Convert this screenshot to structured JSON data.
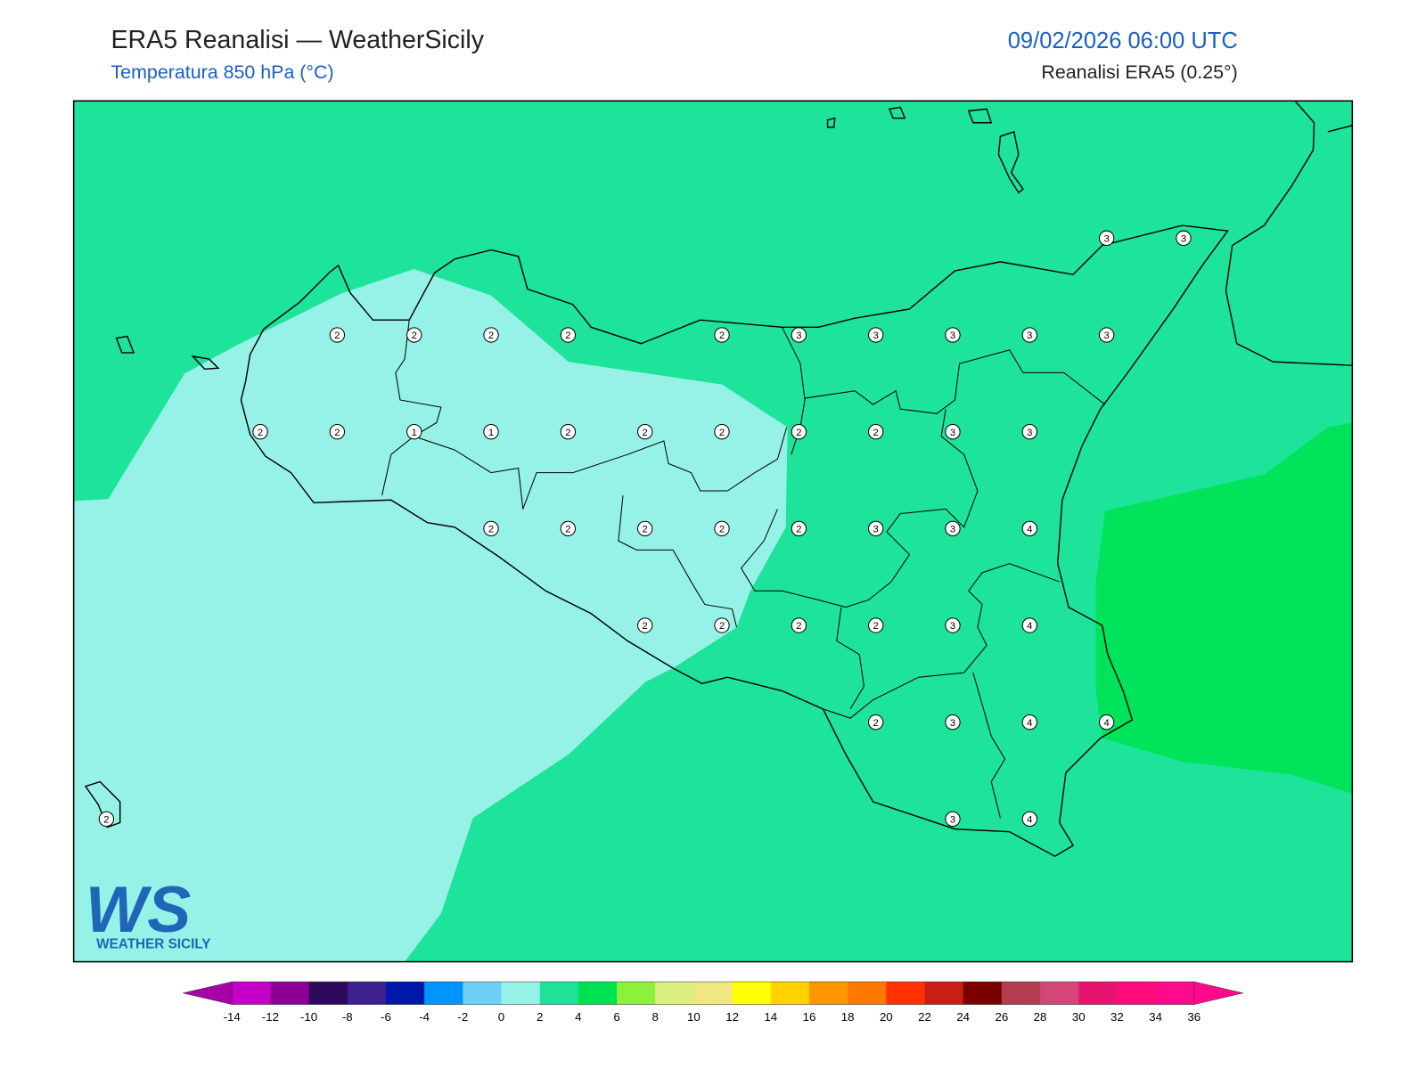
{
  "header": {
    "title": "ERA5 Reanalisi — WeatherSicily",
    "subtitle": "Temperatura 850 hPa (°C)",
    "datetime": "09/02/2026 06:00 UTC",
    "source": "Reanalisi ERA5 (0.25°)"
  },
  "map": {
    "labels": [
      [
        null,
        null,
        null,
        null,
        null,
        null,
        null,
        null,
        null,
        null,
        null,
        null,
        null,
        3,
        3
      ],
      [
        null,
        null,
        null,
        2,
        2,
        2,
        2,
        null,
        2,
        3,
        3,
        3,
        3,
        3,
        null
      ],
      [
        null,
        null,
        2,
        2,
        1,
        1,
        2,
        2,
        2,
        2,
        2,
        3,
        3,
        null,
        null
      ],
      [
        null,
        null,
        null,
        null,
        null,
        2,
        2,
        2,
        2,
        2,
        3,
        3,
        4,
        null,
        null
      ],
      [
        null,
        null,
        null,
        null,
        null,
        null,
        null,
        2,
        2,
        2,
        2,
        3,
        4,
        null,
        null
      ],
      [
        null,
        null,
        null,
        null,
        null,
        null,
        null,
        null,
        null,
        null,
        2,
        3,
        4,
        4,
        null
      ],
      [
        2,
        null,
        null,
        null,
        null,
        null,
        null,
        null,
        null,
        null,
        null,
        3,
        4,
        null,
        null
      ]
    ]
  },
  "logo": {
    "mark": "WS",
    "text": "WEATHER SICILY"
  },
  "colorbar": {
    "ticks": [
      -14,
      -12,
      -10,
      -8,
      -6,
      -4,
      -2,
      0,
      2,
      4,
      6,
      8,
      10,
      12,
      14,
      16,
      18,
      20,
      22,
      24,
      26,
      28,
      30,
      32,
      34,
      36
    ],
    "colors": [
      "#c400c8",
      "#8c0096",
      "#2e0a5c",
      "#3c208c",
      "#0018aa",
      "#0094ff",
      "#6ecff6",
      "#96f2e6",
      "#1ee29a",
      "#00e152",
      "#8cf03c",
      "#dcf082",
      "#f0e682",
      "#ffff00",
      "#ffd200",
      "#ff9600",
      "#ff7800",
      "#ff3200",
      "#c81e14",
      "#7a0000",
      "#b43c50",
      "#d24678",
      "#e6146e",
      "#ff0a7a",
      "#ff0a8c"
    ],
    "under": "#a800a8",
    "over": "#ff0a8c"
  }
}
